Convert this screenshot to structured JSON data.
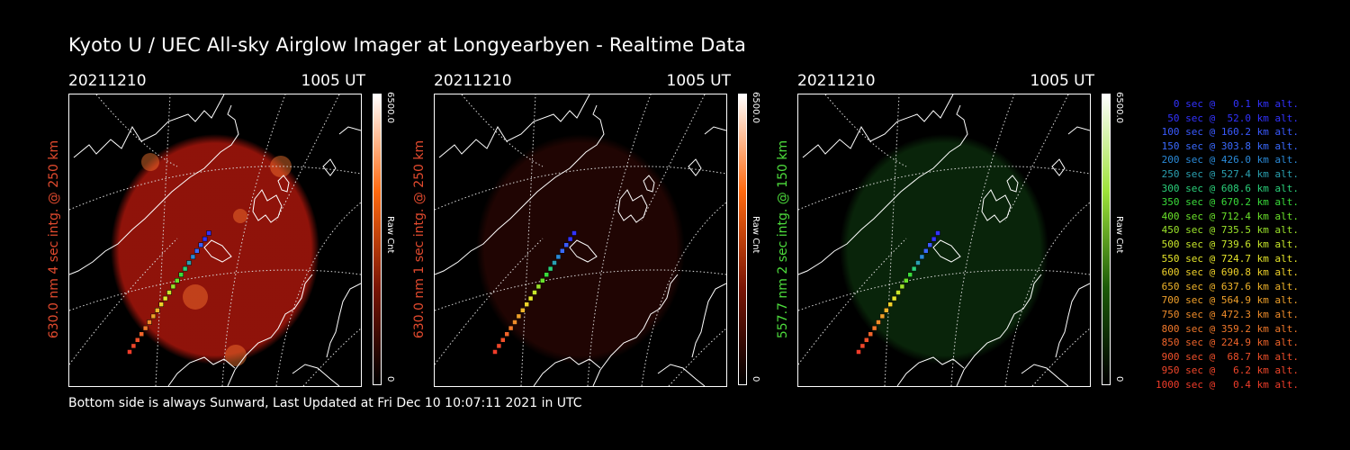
{
  "title": "Kyoto U / UEC All-sky Airglow Imager at Longyearbyen - Realtime Data",
  "panels": [
    {
      "date": "20211210",
      "time": "1005 UT",
      "label": "630.0 nm 4 sec intg. @ 250 km",
      "label_color": "#e24a2e",
      "cbar_max": "6500.0",
      "cbar_unit": "Raw Cnt",
      "cbar_min": "0",
      "glow_color": "#a8160c",
      "glow_level": 0.85,
      "cbar_colors": [
        "#000000",
        "#7a1505",
        "#ff6a10",
        "#ffffff"
      ]
    },
    {
      "date": "20211210",
      "time": "1005 UT",
      "label": "630.0 nm 1 sec intg. @ 250 km",
      "label_color": "#e24a2e",
      "cbar_max": "6500.0",
      "cbar_unit": "Raw Cnt",
      "cbar_min": "0",
      "glow_color": "#3a0905",
      "glow_level": 0.55,
      "cbar_colors": [
        "#000000",
        "#7a1505",
        "#ff6a10",
        "#ffffff"
      ]
    },
    {
      "date": "20211210",
      "time": "1005 UT",
      "label": "557.7 nm 2 sec intg. @ 150 km",
      "label_color": "#4ddc3c",
      "cbar_max": "6500.0",
      "cbar_unit": "Raw Cnt",
      "cbar_min": "0",
      "glow_color": "#0f3c10",
      "glow_level": 0.6,
      "cbar_colors": [
        "#000000",
        "#1c5a08",
        "#9ee23a",
        "#ffffff"
      ]
    }
  ],
  "legend": [
    {
      "text": "0 sec @   0.1 km alt.",
      "color": "#3232ff"
    },
    {
      "text": "50 sec @  52.0 km alt.",
      "color": "#3232ff"
    },
    {
      "text": "100 sec @ 160.2 km alt.",
      "color": "#3a5aff"
    },
    {
      "text": "150 sec @ 303.8 km alt.",
      "color": "#3a6aff"
    },
    {
      "text": "200 sec @ 426.0 km alt.",
      "color": "#2a8ad8"
    },
    {
      "text": "250 sec @ 527.4 km alt.",
      "color": "#2aa0b0"
    },
    {
      "text": "300 sec @ 608.6 km alt.",
      "color": "#2ad07a"
    },
    {
      "text": "350 sec @ 670.2 km alt.",
      "color": "#3adc3a"
    },
    {
      "text": "400 sec @ 712.4 km alt.",
      "color": "#6ae22a"
    },
    {
      "text": "450 sec @ 735.5 km alt.",
      "color": "#9ae22a"
    },
    {
      "text": "500 sec @ 739.6 km alt.",
      "color": "#c8e62a"
    },
    {
      "text": "550 sec @ 724.7 km alt.",
      "color": "#e6e62a"
    },
    {
      "text": "600 sec @ 690.8 km alt.",
      "color": "#f0d22a"
    },
    {
      "text": "650 sec @ 637.6 km alt.",
      "color": "#f0b42a"
    },
    {
      "text": "700 sec @ 564.9 km alt.",
      "color": "#f0a02a"
    },
    {
      "text": "750 sec @ 472.3 km alt.",
      "color": "#f08c2a"
    },
    {
      "text": "800 sec @ 359.2 km alt.",
      "color": "#f0782a"
    },
    {
      "text": "850 sec @ 224.9 km alt.",
      "color": "#f0642a"
    },
    {
      "text": "900 sec @  68.7 km alt.",
      "color": "#f0502a"
    },
    {
      "text": "950 sec @   6.2 km alt.",
      "color": "#f0462a"
    },
    {
      "text": "1000 sec @   0.4 km alt.",
      "color": "#f03c2a"
    }
  ],
  "footer": "Bottom side is always Sunward, Last Updated at Fri Dec 10 10:07:11 2021 in UTC"
}
